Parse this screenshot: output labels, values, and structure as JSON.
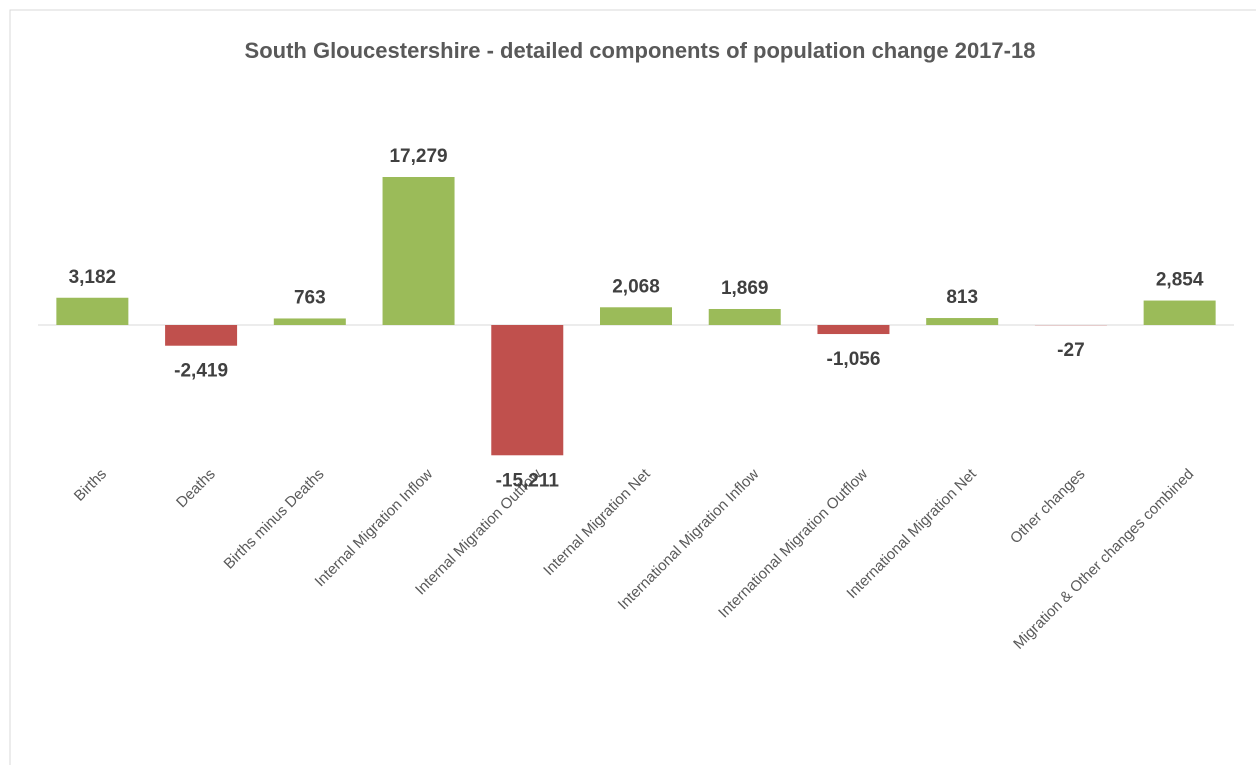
{
  "chart_data": {
    "type": "bar",
    "title": "South Gloucestershire - detailed components of population change 2017-18",
    "categories": [
      "Births",
      "Deaths",
      "Births minus Deaths",
      "Internal Migration Inflow",
      "Internal Migration Outflow",
      "Internal Migration Net",
      "International Migration Inflow",
      "International Migration Outflow",
      "International Migration Net",
      "Other changes",
      "Migration & Other changes combined"
    ],
    "values": [
      3182,
      -2419,
      763,
      17279,
      -15211,
      2068,
      1869,
      -1056,
      813,
      -27,
      2854
    ],
    "value_labels": [
      "3,182",
      "-2,419",
      "763",
      "17,279",
      "-15,211",
      "2,068",
      "1,869",
      "-1,056",
      "813",
      "-27",
      "2,854"
    ],
    "positive_color": "#9bbb59",
    "negative_color": "#c0504d"
  }
}
